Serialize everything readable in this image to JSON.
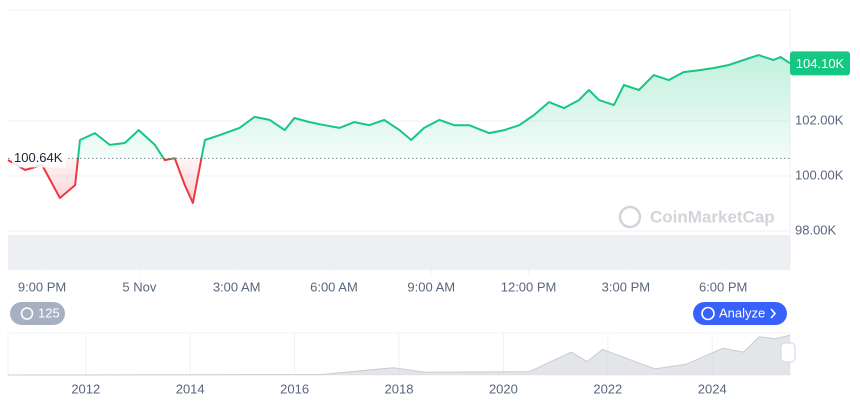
{
  "chart_data": [
    {
      "type": "line",
      "up_color": "#16c784",
      "down_color": "#ea3943",
      "x": [
        -1.05,
        -0.52,
        0,
        0.55,
        1.02,
        1.17,
        1.63,
        2.09,
        2.55,
        2.98,
        3.48,
        3.78,
        4.09,
        4.4,
        4.65,
        5.02,
        5.48,
        6.09,
        6.55,
        7.02,
        7.48,
        7.78,
        8.25,
        8.71,
        9.17,
        9.63,
        10.09,
        10.55,
        11.02,
        11.38,
        11.78,
        12.25,
        12.71,
        13.17,
        13.78,
        14.25,
        14.71,
        15.17,
        15.63,
        16.09,
        16.55,
        16.86,
        17.17,
        17.63,
        17.94,
        18.4,
        18.86,
        19.32,
        19.78,
        20.25,
        20.71,
        21.17,
        21.63,
        22.09,
        22.55,
        22.77,
        23.06
      ],
      "values": [
        100580,
        100220,
        100400,
        99200,
        99670,
        101310,
        101560,
        101130,
        101200,
        101670,
        101130,
        100580,
        100650,
        99670,
        99020,
        101310,
        101490,
        101750,
        102150,
        102040,
        101670,
        102110,
        101960,
        101850,
        101750,
        101960,
        101850,
        102040,
        101670,
        101310,
        101750,
        102040,
        101850,
        101850,
        101560,
        101670,
        101850,
        102220,
        102690,
        102470,
        102760,
        103130,
        102760,
        102580,
        103310,
        103130,
        103670,
        103490,
        103780,
        103850,
        103930,
        104040,
        104220,
        104400,
        104220,
        104330,
        104100
      ],
      "xlim": [
        -1.05,
        23.06
      ],
      "xticks": [
        {
          "value": 0,
          "label": "9:00 PM"
        },
        {
          "value": 3,
          "label": "5 Nov"
        },
        {
          "value": 6,
          "label": "3:00 AM"
        },
        {
          "value": 9,
          "label": "6:00 AM"
        },
        {
          "value": 12,
          "label": "9:00 AM"
        },
        {
          "value": 15,
          "label": "12:00 PM"
        },
        {
          "value": 18,
          "label": "3:00 PM"
        },
        {
          "value": 21,
          "label": "6:00 PM"
        }
      ],
      "ylim": [
        96580,
        106040
      ],
      "yticks": [
        {
          "value": 98000,
          "label": "98.00K"
        },
        {
          "value": 100000,
          "label": "100.00K"
        },
        {
          "value": 102000,
          "label": "102.00K"
        }
      ],
      "baseline": {
        "value": 100640,
        "label": "100.64K"
      },
      "last_price": {
        "value": 104100,
        "label": "104.10K"
      },
      "grid": true
    },
    {
      "type": "area",
      "color": "#c9ccd3",
      "x": [
        2010.51,
        2016.5,
        2017.9,
        2018.5,
        2020.5,
        2021.3,
        2021.6,
        2021.9,
        2022.9,
        2023.5,
        2024.2,
        2024.6,
        2024.9,
        2025.2,
        2025.49
      ],
      "values": [
        0,
        1000,
        19000,
        7000,
        9000,
        60000,
        35000,
        67000,
        16000,
        28000,
        70000,
        60000,
        100000,
        95000,
        104000
      ],
      "xlim": [
        2010.51,
        2025.49
      ],
      "xticks": [
        2012,
        2014,
        2016,
        2018,
        2020,
        2022,
        2024
      ],
      "ylim": [
        0,
        110000
      ]
    }
  ],
  "ui": {
    "history_count": "125",
    "analyze_button": "Analyze",
    "watermark": "CoinMarketCap"
  }
}
